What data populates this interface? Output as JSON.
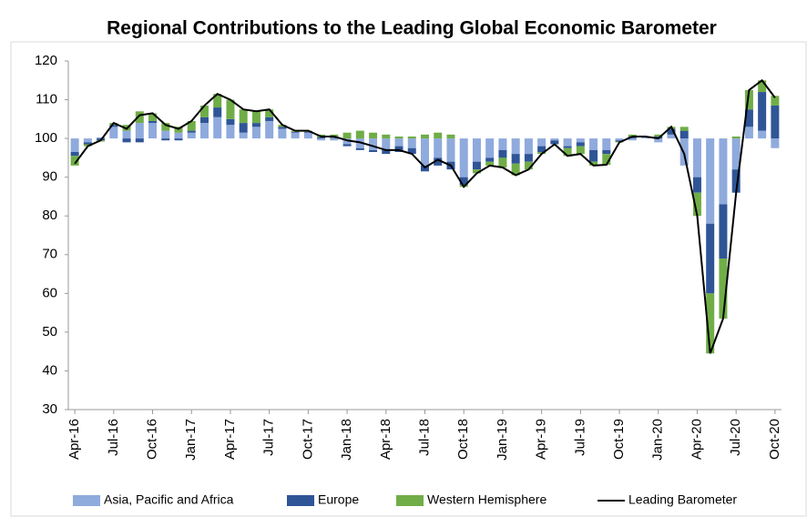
{
  "chart_data": {
    "type": "bar",
    "title": "Regional Contributions to the Leading Global Economic Barometer",
    "categories": [
      "Apr-16",
      null,
      null,
      "Jul-16",
      null,
      null,
      "Oct-16",
      null,
      null,
      "Jan-17",
      null,
      null,
      "Apr-17",
      null,
      null,
      "Jul-17",
      null,
      null,
      "Oct-17",
      null,
      null,
      "Jan-18",
      null,
      null,
      "Apr-18",
      null,
      null,
      "Jul-18",
      null,
      null,
      "Oct-18",
      null,
      null,
      "Jan-19",
      null,
      null,
      "Apr-19",
      null,
      null,
      "Jul-19",
      null,
      null,
      "Oct-19",
      null,
      null,
      "Jan-20",
      null,
      null,
      "Apr-20",
      null,
      null,
      "Jul-20",
      null,
      null,
      "Oct-20"
    ],
    "bar_base": 100,
    "series": [
      {
        "name": "Asia, Pacific and Africa",
        "color": "#8faadc",
        "type": "bar",
        "values": [
          -3.5,
          -1,
          0.3,
          3,
          2,
          4,
          4,
          2,
          1.5,
          1.5,
          4,
          5.5,
          3.5,
          1.5,
          3,
          4.5,
          2.5,
          1.5,
          1.5,
          -0.5,
          -0.5,
          -1.5,
          -2.5,
          -3,
          -3,
          -2,
          -2.5,
          -7,
          -5,
          -6,
          -10,
          -6,
          -5,
          -3,
          -4,
          -4,
          -2,
          -0.5,
          -2,
          -1,
          -3,
          -3,
          -0.5,
          -0.5,
          0.3,
          -1,
          1,
          -7,
          -10,
          -22,
          -17,
          -8,
          3,
          2,
          -2.5
        ]
      },
      {
        "name": "Europe",
        "color": "#2f5597",
        "type": "bar",
        "values": [
          -1,
          -0.5,
          -0.5,
          0.5,
          -1,
          -1,
          0.5,
          -0.5,
          -0.5,
          0.5,
          1.5,
          2.5,
          1.5,
          2.5,
          1,
          1,
          0.5,
          0.2,
          0.2,
          0.3,
          0.2,
          -0.5,
          -0.5,
          -0.5,
          -1,
          -1.5,
          -1.5,
          -1.5,
          -2,
          -2,
          -2,
          -2,
          -1,
          -2,
          -2.5,
          -2,
          -1.5,
          -1,
          -0.5,
          -1,
          -3,
          -1,
          -0.3,
          0.5,
          0.2,
          0.5,
          1.5,
          2,
          -4,
          -18,
          -14,
          -6,
          4.5,
          10,
          8.5
        ]
      },
      {
        "name": "Western Hemisphere",
        "color": "#70ad47",
        "type": "bar",
        "values": [
          -2.5,
          -0.5,
          -0.3,
          0.5,
          1.5,
          3,
          2,
          2,
          1.5,
          2.5,
          3,
          3.5,
          5,
          3.5,
          3,
          2,
          0.5,
          0.3,
          0.3,
          0.7,
          0.8,
          1.5,
          2,
          1.5,
          1,
          0.5,
          0.5,
          1,
          1.5,
          1,
          -0.5,
          -1,
          -1,
          -2.5,
          -3,
          -2,
          -0.5,
          0,
          -2,
          -2,
          -1,
          -2.8,
          -0.2,
          0.5,
          0,
          0.5,
          0.5,
          1,
          -6,
          -15.5,
          -15.5,
          0.5,
          5,
          3,
          2.5
        ]
      },
      {
        "name": "Leading Barometer",
        "color": "#000000",
        "type": "line",
        "values": [
          93.5,
          98,
          99.5,
          104,
          102.5,
          106,
          106.5,
          103.5,
          102.5,
          104.5,
          108.5,
          111.5,
          110,
          107.5,
          107,
          107.5,
          103.5,
          102,
          102,
          100.5,
          100.5,
          99.5,
          99,
          98,
          97,
          97,
          96,
          92.5,
          94.5,
          93,
          87.5,
          91,
          93,
          92.5,
          90.5,
          92,
          96,
          98.5,
          95.5,
          96,
          93,
          93.2,
          99,
          100.5,
          100.5,
          100,
          103,
          96,
          80,
          44.5,
          53.5,
          86,
          112.5,
          115,
          110.5
        ]
      }
    ],
    "ylim": [
      30,
      120
    ],
    "yticks": [
      30,
      40,
      50,
      60,
      70,
      80,
      90,
      100,
      110,
      120
    ]
  }
}
